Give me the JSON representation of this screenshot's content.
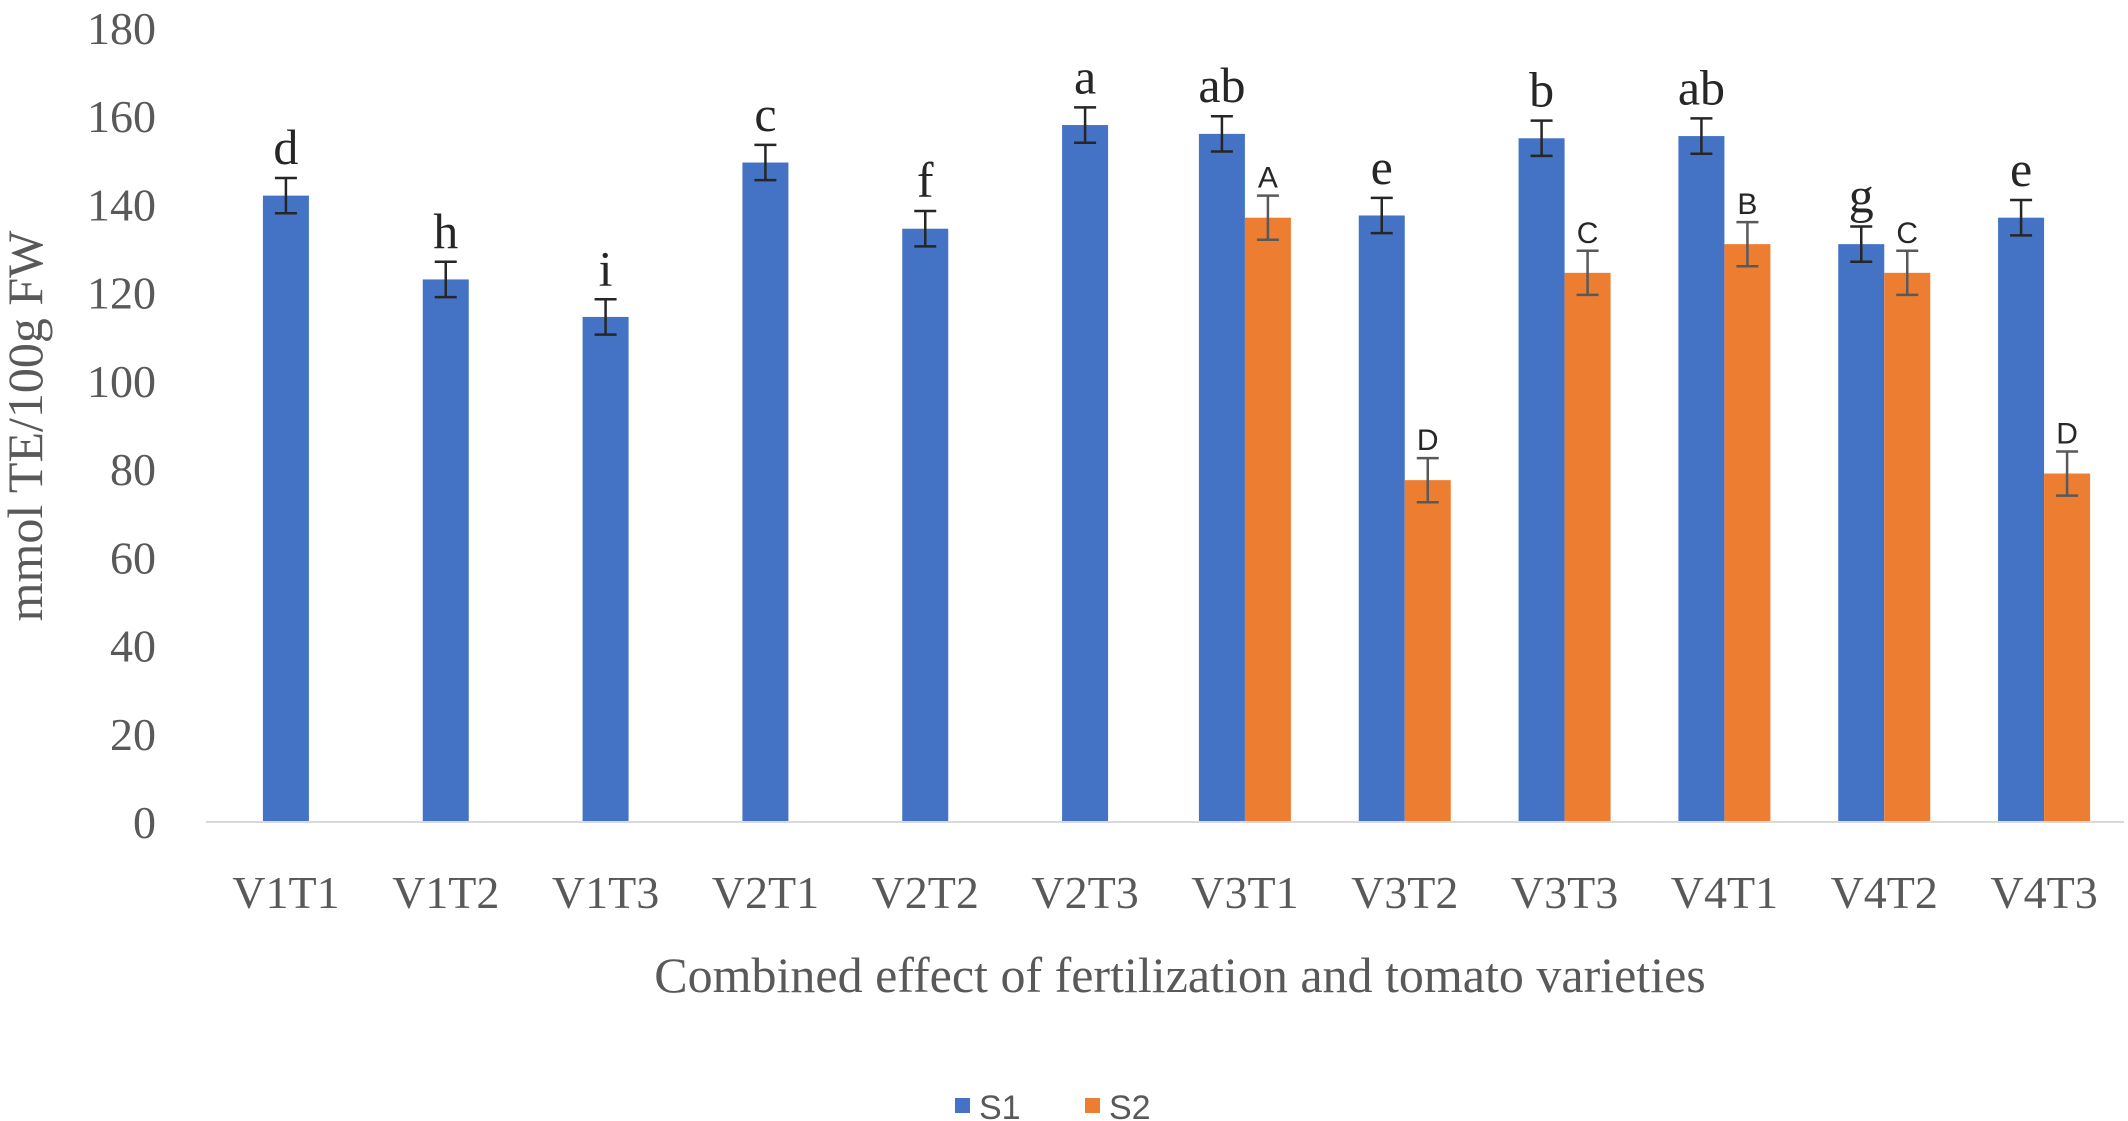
{
  "chart_data": {
    "type": "bar",
    "title": "",
    "xlabel": "Combined effect of fertilization and tomato varieties",
    "ylabel": "mmol TE/100g FW",
    "ylim": [
      0,
      180
    ],
    "yticks": [
      0,
      20,
      40,
      60,
      80,
      100,
      120,
      140,
      160,
      180
    ],
    "grid": false,
    "legend_position": "bottom",
    "categories": [
      "V1T1",
      "V1T2",
      "V1T3",
      "V2T1",
      "V2T2",
      "V2T3",
      "V3T1",
      "V3T2",
      "V3T3",
      "V4T1",
      "V4T2",
      "V4T3"
    ],
    "series": [
      {
        "name": "S1",
        "color": "#4472C4",
        "values": [
          142,
          123,
          114.5,
          149.5,
          134.5,
          158,
          156,
          137.5,
          155,
          155.5,
          131,
          137
        ],
        "errors": [
          4,
          4,
          4,
          4,
          4,
          4,
          4,
          4,
          4,
          4,
          4,
          4
        ],
        "labels": [
          "d",
          "h",
          "i",
          "c",
          "f",
          "a",
          "ab",
          "e",
          "b",
          "ab",
          "g",
          "e"
        ]
      },
      {
        "name": "S2",
        "color": "#ED7D31",
        "values": [
          null,
          null,
          null,
          null,
          null,
          null,
          137,
          77.5,
          124.5,
          131,
          124.5,
          79
        ],
        "errors": [
          null,
          null,
          null,
          null,
          null,
          null,
          5,
          5,
          5,
          5,
          5,
          5
        ],
        "labels": [
          "",
          "",
          "",
          "",
          "",
          "",
          "A",
          "D",
          "C",
          "B",
          "C",
          "D"
        ]
      }
    ]
  }
}
